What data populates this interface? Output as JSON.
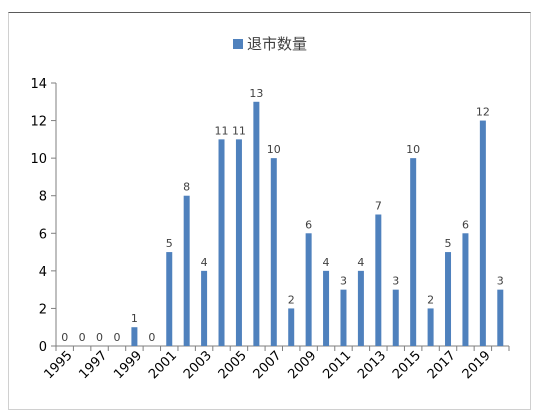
{
  "chart_data": {
    "type": "bar",
    "title": "",
    "xlabel": "",
    "ylabel": "",
    "ylim": [
      0,
      14
    ],
    "yticks": [
      0,
      2,
      4,
      6,
      8,
      10,
      12,
      14
    ],
    "grid": false,
    "legend": {
      "position": "top",
      "entries": [
        "退市数量"
      ]
    },
    "categories": [
      "1995",
      "1996",
      "1997",
      "1998",
      "1999",
      "2000",
      "2001",
      "2002",
      "2003",
      "2004",
      "2005",
      "2006",
      "2007",
      "2008",
      "2009",
      "2010",
      "2011",
      "2012",
      "2013",
      "2014",
      "2015",
      "2016",
      "2017",
      "2018",
      "2019",
      "2020"
    ],
    "xtick_labels": [
      "1995",
      "1997",
      "1999",
      "2001",
      "2003",
      "2005",
      "2007",
      "2009",
      "2011",
      "2013",
      "2015",
      "2017",
      "2019"
    ],
    "series": [
      {
        "name": "退市数量",
        "color": "#4f81bd",
        "values": [
          0,
          0,
          0,
          0,
          1,
          0,
          5,
          8,
          4,
          11,
          11,
          13,
          10,
          2,
          6,
          4,
          3,
          4,
          7,
          3,
          10,
          2,
          5,
          6,
          12,
          3
        ],
        "data_labels": [
          "0",
          "0",
          "0",
          "0",
          "1",
          "0",
          "5",
          "8",
          "4",
          "11",
          "11",
          "13",
          "10",
          "2",
          "6",
          "4",
          "3",
          "4",
          "7",
          "3",
          "10",
          "2",
          "5",
          "6",
          "12",
          "3"
        ]
      }
    ]
  }
}
